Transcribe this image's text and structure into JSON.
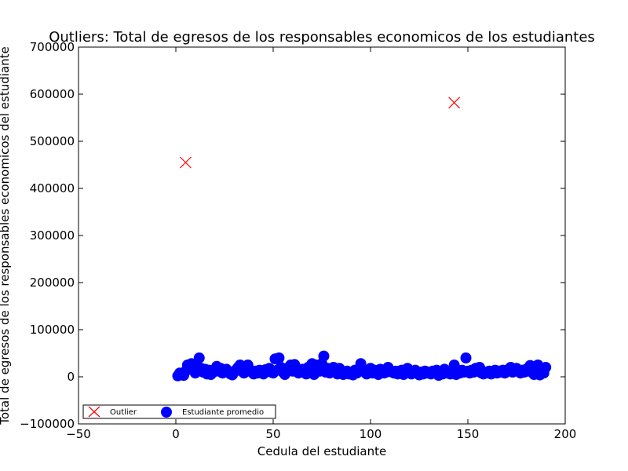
{
  "chart_data": {
    "type": "scatter",
    "title": "Outliers: Total de egresos de los responsables economicos de los estudiantes",
    "xlabel": "Cedula del estudiante",
    "ylabel": "Total de egresos de los responsables economicos del estudiante",
    "xlim": [
      -50,
      200
    ],
    "ylim": [
      -100000,
      700000
    ],
    "x_ticks": [
      -50,
      0,
      50,
      100,
      150,
      200
    ],
    "y_ticks": [
      -100000,
      0,
      100000,
      200000,
      300000,
      400000,
      500000,
      600000,
      700000
    ],
    "x_tick_labels": [
      "−50",
      "0",
      "50",
      "100",
      "150",
      "200"
    ],
    "y_tick_labels": [
      "−100000",
      "0",
      "100000",
      "200000",
      "300000",
      "400000",
      "500000",
      "600000",
      "700000"
    ],
    "grid": false,
    "legend_position": "bottom-left",
    "series": [
      {
        "name": "Outlier",
        "color": "#ff0000",
        "marker": "x",
        "points": [
          [
            5,
            455000
          ],
          [
            143,
            582000
          ]
        ]
      },
      {
        "name": "Estudiante promedio",
        "color": "#0000ff",
        "marker": "circle",
        "points": [
          [
            1,
            2000
          ],
          [
            2,
            8000
          ],
          [
            3,
            5000
          ],
          [
            4,
            3000
          ],
          [
            5,
            12000
          ],
          [
            6,
            25000
          ],
          [
            7,
            20000
          ],
          [
            8,
            28000
          ],
          [
            9,
            15000
          ],
          [
            10,
            8000
          ],
          [
            11,
            22000
          ],
          [
            12,
            40000
          ],
          [
            13,
            18000
          ],
          [
            14,
            10000
          ],
          [
            15,
            16000
          ],
          [
            16,
            6000
          ],
          [
            17,
            14000
          ],
          [
            18,
            5000
          ],
          [
            19,
            9000
          ],
          [
            20,
            15000
          ],
          [
            21,
            22000
          ],
          [
            22,
            12000
          ],
          [
            23,
            18000
          ],
          [
            24,
            8000
          ],
          [
            25,
            14000
          ],
          [
            26,
            16000
          ],
          [
            27,
            10000
          ],
          [
            28,
            6000
          ],
          [
            29,
            4000
          ],
          [
            30,
            10000
          ],
          [
            31,
            15000
          ],
          [
            32,
            20000
          ],
          [
            33,
            25000
          ],
          [
            34,
            12000
          ],
          [
            35,
            8000
          ],
          [
            36,
            18000
          ],
          [
            37,
            25000
          ],
          [
            38,
            15000
          ],
          [
            39,
            10000
          ],
          [
            40,
            6000
          ],
          [
            41,
            12000
          ],
          [
            42,
            8000
          ],
          [
            43,
            14000
          ],
          [
            44,
            10000
          ],
          [
            45,
            6000
          ],
          [
            46,
            15000
          ],
          [
            47,
            12000
          ],
          [
            48,
            18000
          ],
          [
            49,
            10000
          ],
          [
            50,
            8000
          ],
          [
            51,
            38000
          ],
          [
            52,
            14000
          ],
          [
            53,
            40000
          ],
          [
            54,
            20000
          ],
          [
            55,
            10000
          ],
          [
            56,
            5000
          ],
          [
            57,
            12000
          ],
          [
            58,
            20000
          ],
          [
            59,
            25000
          ],
          [
            60,
            12000
          ],
          [
            61,
            26000
          ],
          [
            62,
            15000
          ],
          [
            63,
            8000
          ],
          [
            64,
            10000
          ],
          [
            65,
            16000
          ],
          [
            66,
            12000
          ],
          [
            67,
            6000
          ],
          [
            68,
            20000
          ],
          [
            69,
            10000
          ],
          [
            70,
            28000
          ],
          [
            71,
            5000
          ],
          [
            72,
            25000
          ],
          [
            73,
            15000
          ],
          [
            74,
            12000
          ],
          [
            75,
            28000
          ],
          [
            76,
            44000
          ],
          [
            77,
            10000
          ],
          [
            78,
            18000
          ],
          [
            79,
            8000
          ],
          [
            80,
            12000
          ],
          [
            81,
            20000
          ],
          [
            82,
            15000
          ],
          [
            83,
            6000
          ],
          [
            84,
            18000
          ],
          [
            85,
            10000
          ],
          [
            86,
            5000
          ],
          [
            87,
            8000
          ],
          [
            88,
            12000
          ],
          [
            89,
            6000
          ],
          [
            90,
            10000
          ],
          [
            91,
            4000
          ],
          [
            92,
            14000
          ],
          [
            93,
            8000
          ],
          [
            94,
            12000
          ],
          [
            95,
            28000
          ],
          [
            96,
            15000
          ],
          [
            97,
            10000
          ],
          [
            98,
            6000
          ],
          [
            99,
            12000
          ],
          [
            100,
            18000
          ],
          [
            101,
            8000
          ],
          [
            102,
            14000
          ],
          [
            103,
            10000
          ],
          [
            104,
            5000
          ],
          [
            105,
            16000
          ],
          [
            106,
            12000
          ],
          [
            107,
            8000
          ],
          [
            108,
            10000
          ],
          [
            109,
            20000
          ],
          [
            110,
            14000
          ],
          [
            111,
            10000
          ],
          [
            112,
            8000
          ],
          [
            113,
            12000
          ],
          [
            114,
            6000
          ],
          [
            115,
            10000
          ],
          [
            116,
            14000
          ],
          [
            117,
            5000
          ],
          [
            118,
            8000
          ],
          [
            119,
            18000
          ],
          [
            120,
            12000
          ],
          [
            121,
            6000
          ],
          [
            122,
            10000
          ],
          [
            123,
            14000
          ],
          [
            124,
            8000
          ],
          [
            125,
            4000
          ],
          [
            126,
            10000
          ],
          [
            127,
            6000
          ],
          [
            128,
            12000
          ],
          [
            129,
            8000
          ],
          [
            130,
            10000
          ],
          [
            131,
            6000
          ],
          [
            132,
            12000
          ],
          [
            133,
            8000
          ],
          [
            134,
            14000
          ],
          [
            135,
            3000
          ],
          [
            136,
            10000
          ],
          [
            137,
            6000
          ],
          [
            138,
            16000
          ],
          [
            139,
            8000
          ],
          [
            140,
            12000
          ],
          [
            141,
            6000
          ],
          [
            142,
            10000
          ],
          [
            143,
            25000
          ],
          [
            144,
            5000
          ],
          [
            145,
            12000
          ],
          [
            146,
            8000
          ],
          [
            147,
            14000
          ],
          [
            148,
            10000
          ],
          [
            149,
            40000
          ],
          [
            150,
            12000
          ],
          [
            151,
            8000
          ],
          [
            152,
            14000
          ],
          [
            153,
            10000
          ],
          [
            154,
            18000
          ],
          [
            155,
            12000
          ],
          [
            156,
            20000
          ],
          [
            157,
            8000
          ],
          [
            158,
            6000
          ],
          [
            159,
            10000
          ],
          [
            160,
            8000
          ],
          [
            161,
            12000
          ],
          [
            162,
            6000
          ],
          [
            163,
            10000
          ],
          [
            164,
            14000
          ],
          [
            165,
            8000
          ],
          [
            166,
            12000
          ],
          [
            167,
            10000
          ],
          [
            168,
            14000
          ],
          [
            169,
            8000
          ],
          [
            170,
            12000
          ],
          [
            171,
            16000
          ],
          [
            172,
            20000
          ],
          [
            173,
            10000
          ],
          [
            174,
            14000
          ],
          [
            175,
            18000
          ],
          [
            176,
            12000
          ],
          [
            177,
            8000
          ],
          [
            178,
            14000
          ],
          [
            179,
            10000
          ],
          [
            180,
            16000
          ],
          [
            181,
            12000
          ],
          [
            182,
            24000
          ],
          [
            183,
            10000
          ],
          [
            184,
            5000
          ],
          [
            185,
            14000
          ],
          [
            186,
            25000
          ],
          [
            187,
            4000
          ],
          [
            188,
            12000
          ],
          [
            189,
            8000
          ],
          [
            190,
            20000
          ]
        ]
      }
    ]
  }
}
